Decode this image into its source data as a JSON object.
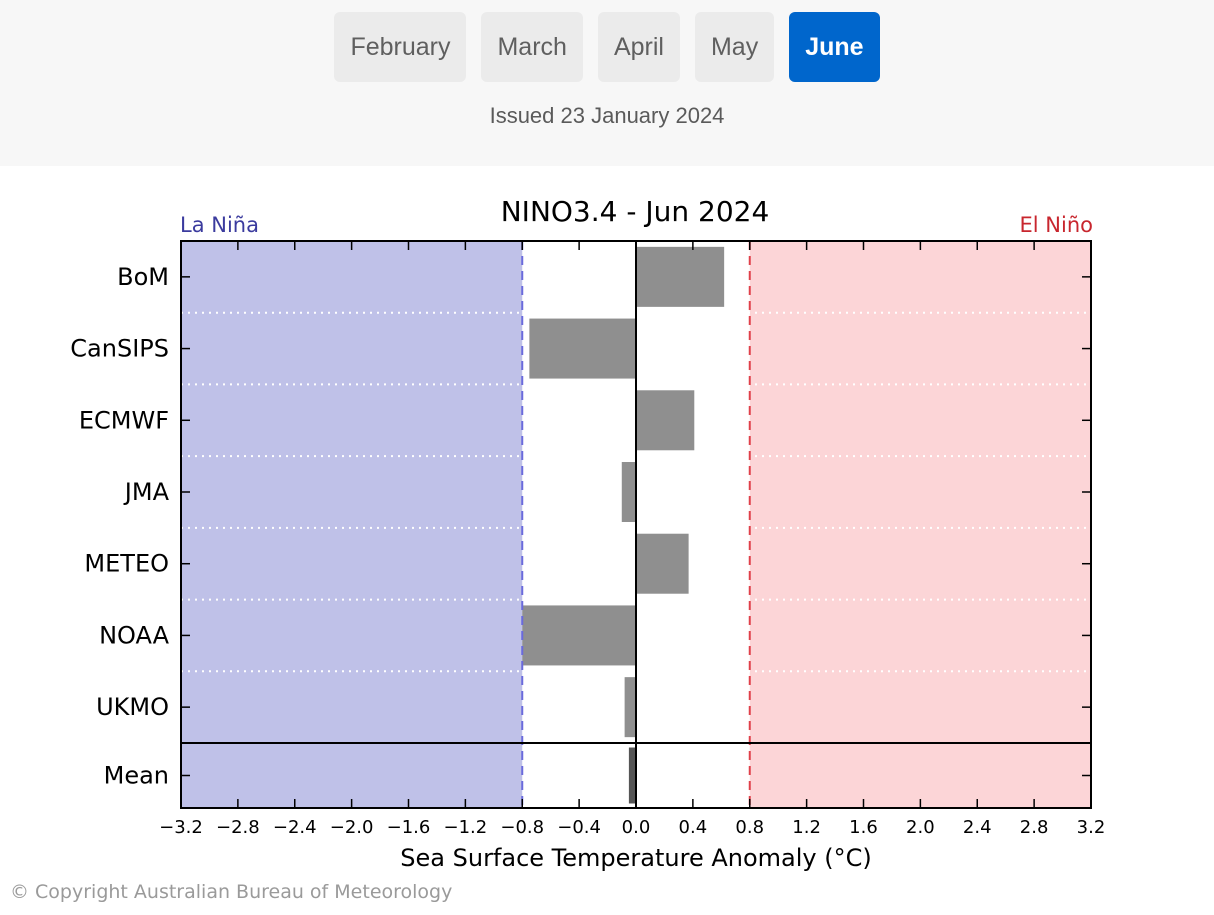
{
  "nav": {
    "months": [
      {
        "label": "February",
        "active": false
      },
      {
        "label": "March",
        "active": false
      },
      {
        "label": "April",
        "active": false
      },
      {
        "label": "May",
        "active": false
      },
      {
        "label": "June",
        "active": true
      }
    ],
    "issued": "Issued 23 January 2024"
  },
  "colors": {
    "accent": "#0066cc",
    "la_nina_fill": "#bfc1e8",
    "el_nino_fill": "#fcd5d7",
    "la_nina_text": "#3b3b9e",
    "el_nino_text": "#c8262e",
    "bar_fill": "#8f8f8f"
  },
  "chart_data": {
    "type": "bar",
    "orientation": "horizontal",
    "title": "NINO3.4 - Jun 2024",
    "xlabel": "Sea Surface Temperature Anomaly (°C)",
    "ylabel": "",
    "xlim": [
      -3.2,
      3.2
    ],
    "xticks": [
      -3.2,
      -2.8,
      -2.4,
      -2.0,
      -1.6,
      -1.2,
      -0.8,
      -0.4,
      0.0,
      0.4,
      0.8,
      1.2,
      1.6,
      2.0,
      2.4,
      2.8,
      3.2
    ],
    "xtick_labels": [
      "−3.2",
      "−2.8",
      "−2.4",
      "−2.0",
      "−1.6",
      "−1.2",
      "−0.8",
      "−0.4",
      "0.0",
      "0.4",
      "0.8",
      "1.2",
      "1.6",
      "2.0",
      "2.4",
      "2.8",
      "3.2"
    ],
    "categories": [
      "BoM",
      "CanSIPS",
      "ECMWF",
      "JMA",
      "METEO",
      "NOAA",
      "UKMO",
      "Mean"
    ],
    "values": [
      0.62,
      -0.75,
      0.41,
      -0.1,
      0.37,
      -0.8,
      -0.08,
      -0.05
    ],
    "thresholds": {
      "la_nina": -0.8,
      "el_nino": 0.8
    },
    "region_labels": {
      "la_nina": "La Niña",
      "el_nino": "El Niño"
    },
    "grid": "dotted horizontal separators"
  },
  "footer": {
    "copyright": "© Copyright Australian Bureau of Meteorology"
  }
}
